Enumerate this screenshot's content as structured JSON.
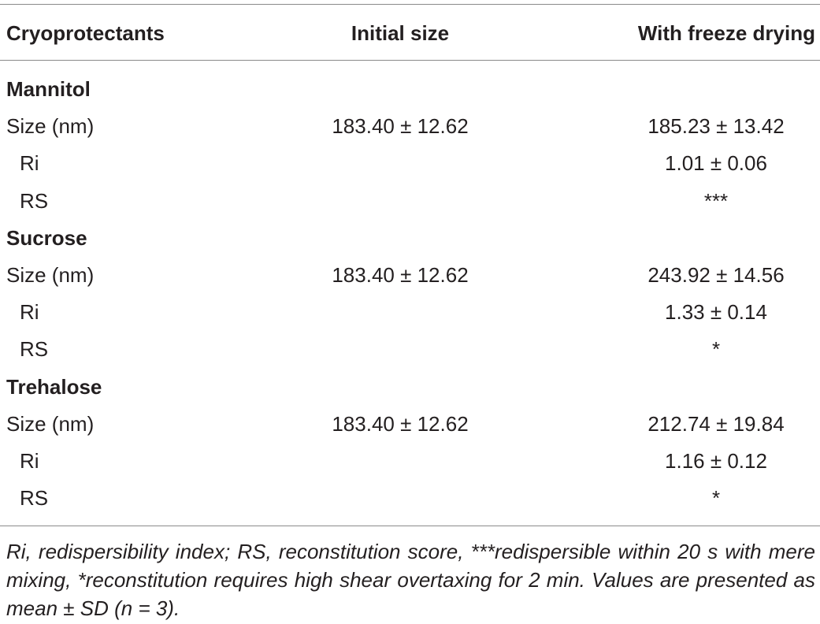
{
  "table": {
    "header": [
      "Cryoprotectants",
      "Initial size",
      "With freeze drying"
    ],
    "groups": [
      {
        "name": "Mannitol",
        "rows": [
          {
            "label": "Size (nm)",
            "initial": "183.40 ± 12.62",
            "freeze_drying": "185.23 ± 13.42"
          },
          {
            "label": "Ri",
            "freeze_drying": "1.01 ± 0.06"
          },
          {
            "label": "RS",
            "freeze_drying": "***"
          }
        ]
      },
      {
        "name": "Sucrose",
        "rows": [
          {
            "label": "Size (nm)",
            "initial": "183.40 ± 12.62",
            "freeze_drying": "243.92 ± 14.56"
          },
          {
            "label": "Ri",
            "freeze_drying": "1.33 ± 0.14"
          },
          {
            "label": "RS",
            "freeze_drying": "*"
          }
        ]
      },
      {
        "name": "Trehalose",
        "rows": [
          {
            "label": "Size (nm)",
            "initial": "183.40 ± 12.62",
            "freeze_drying": "212.74 ± 19.84"
          },
          {
            "label": "Ri",
            "freeze_drying": "1.16 ± 0.12"
          },
          {
            "label": "RS",
            "freeze_drying": "*"
          }
        ]
      }
    ],
    "footnote": "Ri, redispersibility index; RS, reconstitution score, ***redispersible within 20 s with mere mixing, *reconstitution requires high shear overtaxing for 2 min. Values are presented as mean ± SD (n = 3)."
  }
}
